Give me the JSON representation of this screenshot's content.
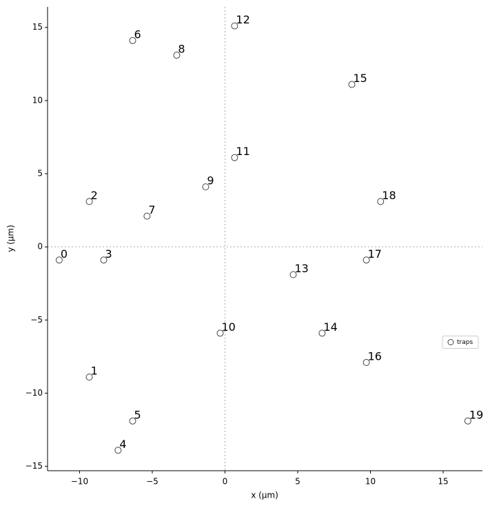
{
  "chart_data": {
    "type": "scatter",
    "xlabel": "x (µm)",
    "ylabel": "y (µm)",
    "xlim": [
      -12.2,
      17.7
    ],
    "ylim": [
      -15.3,
      16.4
    ],
    "xticks": [
      {
        "value": -10,
        "label": "−10"
      },
      {
        "value": -5,
        "label": "−5"
      },
      0,
      5,
      10,
      15
    ],
    "yticks": [
      {
        "value": -15,
        "label": "−15"
      },
      {
        "value": -10,
        "label": "−10"
      },
      {
        "value": -5,
        "label": "−5"
      },
      0,
      5,
      10,
      15
    ],
    "zero_lines": true,
    "legend": "center right",
    "series": [
      {
        "name": "traps",
        "color": "#444444",
        "x": [
          -11.4,
          -9.33,
          -9.33,
          -8.34,
          -7.35,
          -6.35,
          -6.35,
          -5.36,
          -3.32,
          -1.33,
          -0.33,
          0.66,
          0.66,
          4.69,
          6.68,
          8.72,
          9.72,
          9.72,
          10.7,
          16.7
        ],
        "values": [
          -0.9,
          -8.9,
          3.1,
          -0.9,
          -13.9,
          -11.9,
          14.1,
          2.1,
          13.1,
          4.1,
          -5.9,
          6.1,
          15.1,
          -1.9,
          -5.9,
          11.1,
          -7.9,
          -0.9,
          3.1,
          -11.9
        ],
        "point_labels": [
          "0",
          "1",
          "2",
          "3",
          "4",
          "5",
          "6",
          "7",
          "8",
          "9",
          "10",
          "11",
          "12",
          "13",
          "14",
          "15",
          "16",
          "17",
          "18",
          "19"
        ]
      }
    ]
  }
}
